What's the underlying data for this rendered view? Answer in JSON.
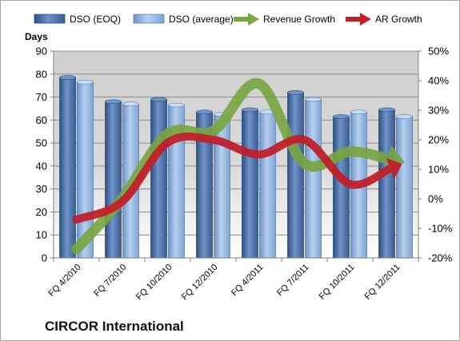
{
  "company": "CIRCOR International",
  "chart_data": {
    "type": "bar",
    "ylabel": "Days",
    "categories": [
      "FQ 4/2010",
      "FQ 7/2010",
      "FQ 10/2010",
      "FQ 12/2010",
      "FQ 4/2011",
      "FQ 7/2011",
      "FQ 10/2011",
      "FQ 12/2011"
    ],
    "ylim": [
      0,
      90
    ],
    "yticks": [
      "0",
      "10",
      "20",
      "30",
      "40",
      "50",
      "60",
      "70",
      "80",
      "90"
    ],
    "y2lim": [
      -20,
      50
    ],
    "y2ticks": [
      "-20%",
      "-10%",
      "0%",
      "10%",
      "20%",
      "30%",
      "40%",
      "50%"
    ],
    "grid": true,
    "legend_position": "top",
    "series": [
      {
        "name": "DSO (EOQ)",
        "kind": "bar",
        "axis": "left",
        "color": "#4a6fa5",
        "values": [
          78.5,
          68,
          69,
          63.5,
          64.5,
          72,
          61.5,
          64.5
        ]
      },
      {
        "name": "DSO (average)",
        "kind": "bar",
        "axis": "left",
        "color": "#8fb4e3",
        "values": [
          76.5,
          67,
          66.5,
          62.5,
          63.5,
          69,
          63.5,
          61.5
        ]
      },
      {
        "name": "Revenue Growth",
        "kind": "arrow-line",
        "axis": "right",
        "color": "#77a53f",
        "values": [
          -17,
          0,
          22,
          23,
          39,
          12,
          16,
          13
        ]
      },
      {
        "name": "AR Growth",
        "kind": "arrow-line",
        "axis": "right",
        "color": "#c0202a",
        "values": [
          -7,
          -1,
          19,
          20,
          15,
          20,
          5,
          11
        ]
      }
    ]
  }
}
